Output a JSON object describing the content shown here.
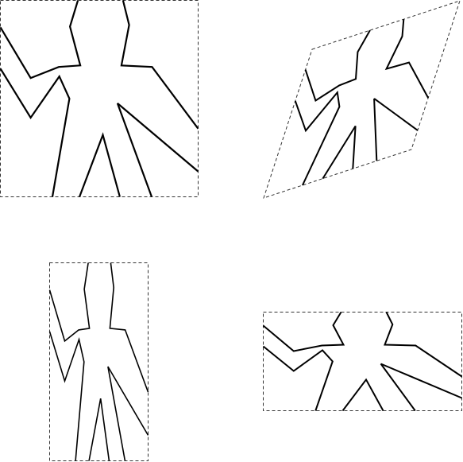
{
  "diagram": {
    "description_shown_text": [],
    "panels": [
      {
        "id": "original",
        "transform": "none"
      },
      {
        "id": "sheared",
        "transform": "shear"
      },
      {
        "id": "squeezed",
        "transform": "horizontal-squeeze"
      },
      {
        "id": "stretched",
        "transform": "horizontal-stretch"
      }
    ]
  },
  "colors": {
    "frame": "#333333",
    "figure": "#000000",
    "background": "#ffffff"
  }
}
